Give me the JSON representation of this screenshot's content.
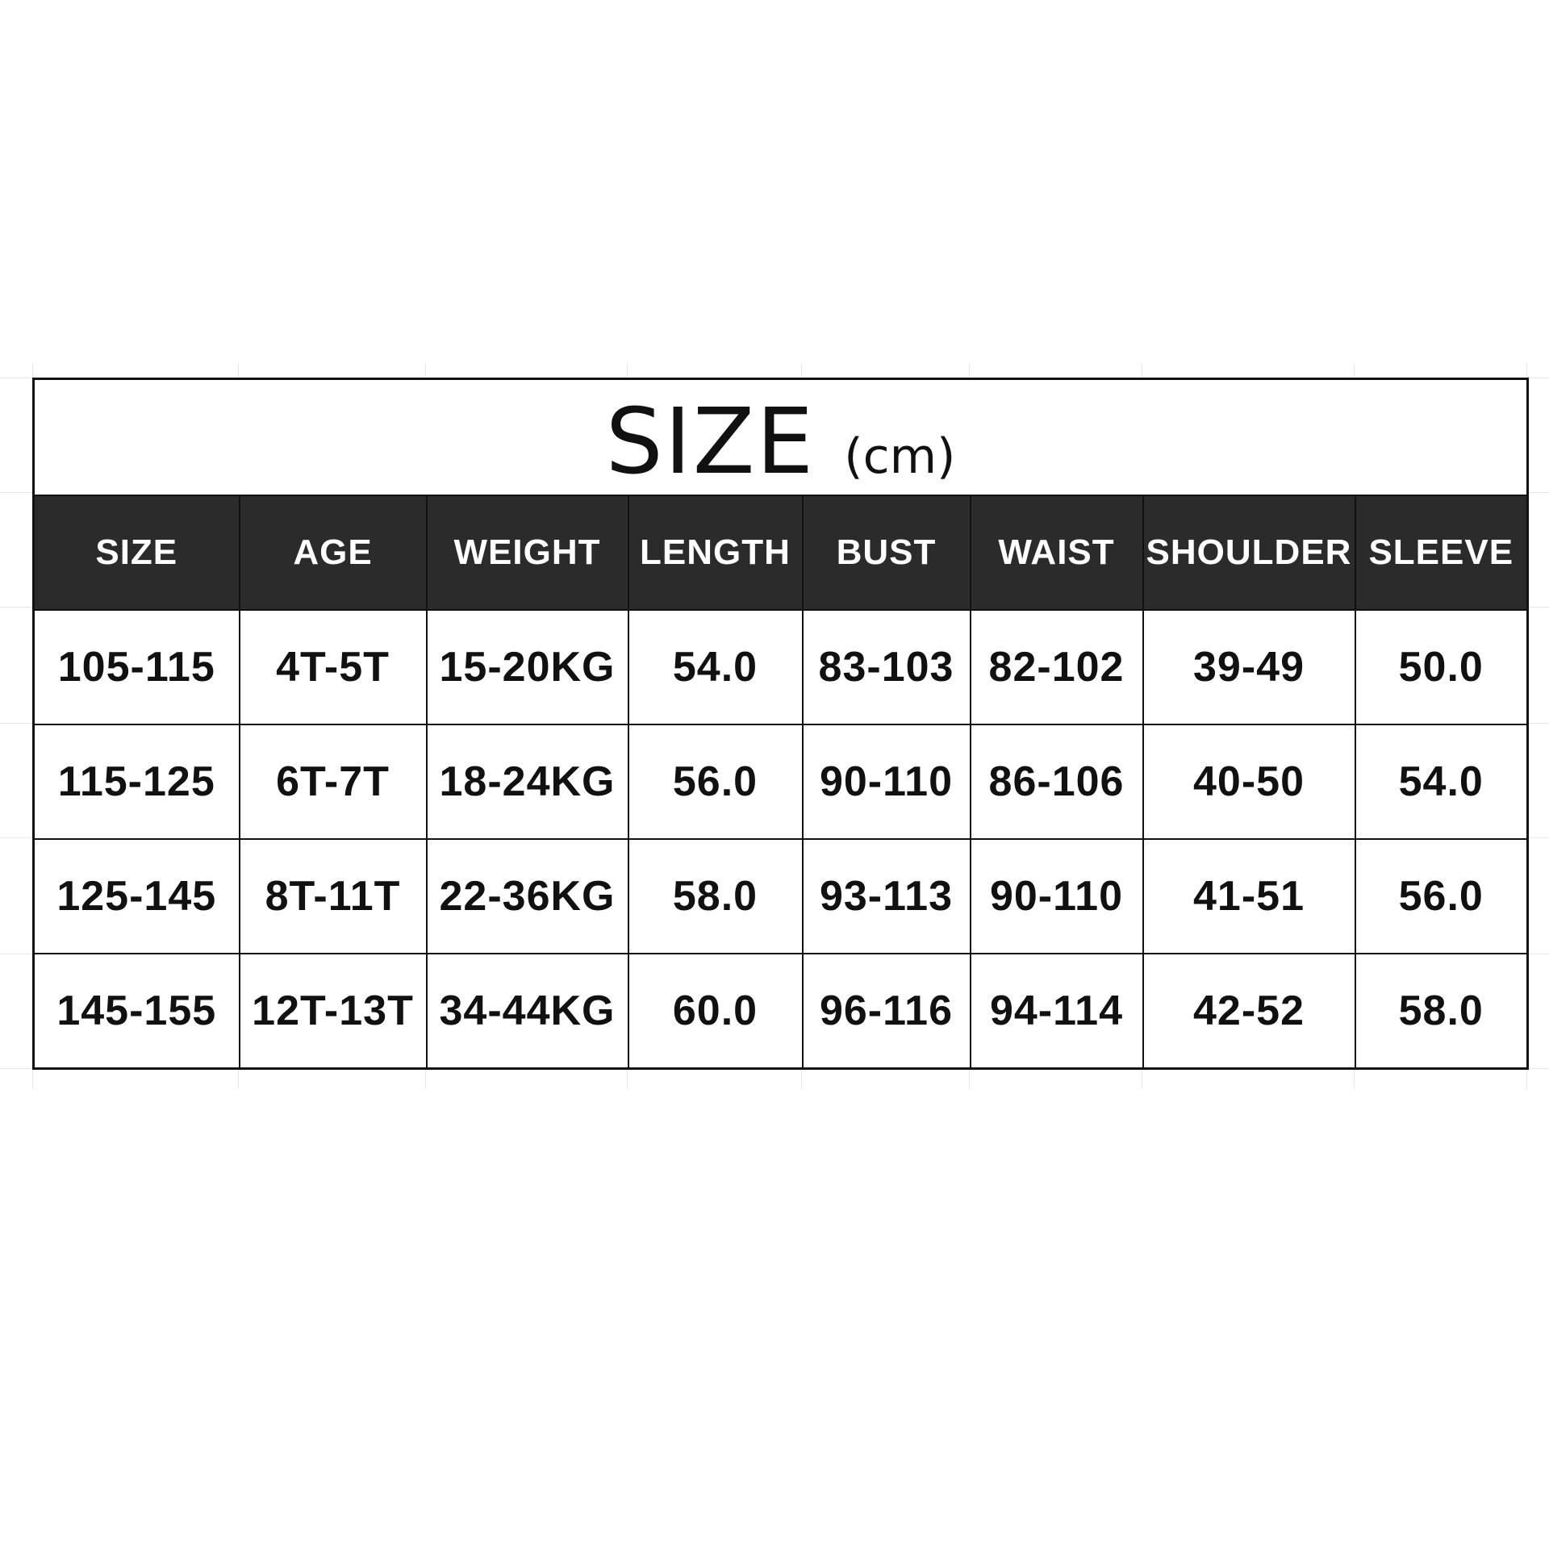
{
  "title": "SIZE",
  "unit": "(cm)",
  "columns": [
    "SIZE",
    "AGE",
    "WEIGHT",
    "LENGTH",
    "BUST",
    "WAIST",
    "SHOULDER",
    "SLEEVE"
  ],
  "rows": [
    [
      "105-115",
      "4T-5T",
      "15-20KG",
      "54.0",
      "83-103",
      "82-102",
      "39-49",
      "50.0"
    ],
    [
      "115-125",
      "6T-7T",
      "18-24KG",
      "56.0",
      "90-110",
      "86-106",
      "40-50",
      "54.0"
    ],
    [
      "125-145",
      "8T-11T",
      "22-36KG",
      "58.0",
      "93-113",
      "90-110",
      "41-51",
      "56.0"
    ],
    [
      "145-155",
      "12T-13T",
      "34-44KG",
      "60.0",
      "96-116",
      "94-114",
      "42-52",
      "58.0"
    ]
  ],
  "colors": {
    "header_background": "#2b2b2b",
    "header_text": "#ffffff",
    "cell_text": "#111111",
    "border": "#111111",
    "background": "#ffffff"
  }
}
